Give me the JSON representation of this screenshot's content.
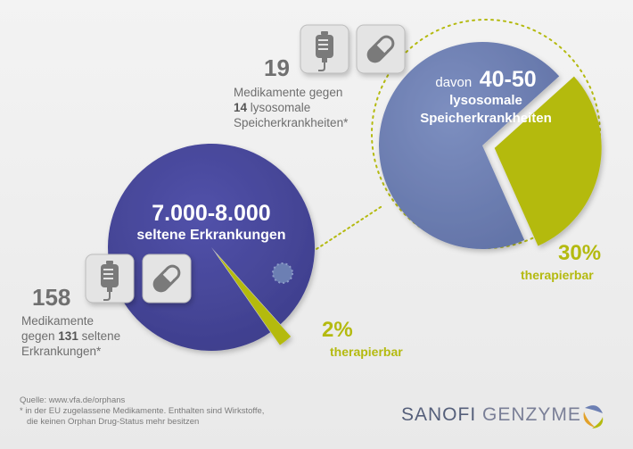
{
  "chart_data": [
    {
      "type": "pie",
      "title": "7.000-8.000",
      "subtitle": "seltene Erkrankungen",
      "slices": [
        {
          "label": "therapierbar",
          "value": 2,
          "display": "2%"
        },
        {
          "label": "",
          "value": 98
        }
      ]
    },
    {
      "type": "pie",
      "title_prefix": "davon",
      "title": "40-50",
      "subtitle_lines": [
        "lysosomale",
        "Speicherkrankheiten"
      ],
      "slices": [
        {
          "label": "therapierbar",
          "value": 30,
          "display": "30%"
        },
        {
          "label": "",
          "value": 70
        }
      ]
    }
  ],
  "colors": {
    "rare_pie": "#4a4a9e",
    "lysosomal_pie": "#6c7fb3",
    "treatable": "#b4ba10",
    "text_gray": "#6e6e6e"
  },
  "lysosomal_info": {
    "count": "19",
    "line1": "Medikamente gegen",
    "line2_bold": "14",
    "line2_rest": " lysosomale",
    "line3": "Speicherkrankheiten*",
    "icons": [
      "infusion-bag-icon",
      "pill-capsule-icon"
    ]
  },
  "rare_info": {
    "count": "158",
    "line1": "Medikamente",
    "line2_pre": "gegen ",
    "line2_bold": "131",
    "line2_rest": " seltene",
    "line3": "Erkrankungen*",
    "icons": [
      "infusion-bag-icon",
      "pill-capsule-icon"
    ]
  },
  "footnote": {
    "source": "Quelle: www.vfa.de/orphans",
    "note1": "* in der EU zugelassene Medikamente. Enthalten sind Wirkstoffe,",
    "note2": "die keinen Orphan Drug-Status mehr besitzen"
  },
  "logo": {
    "part1": "SANOFI",
    "part2": "GENZYME"
  }
}
